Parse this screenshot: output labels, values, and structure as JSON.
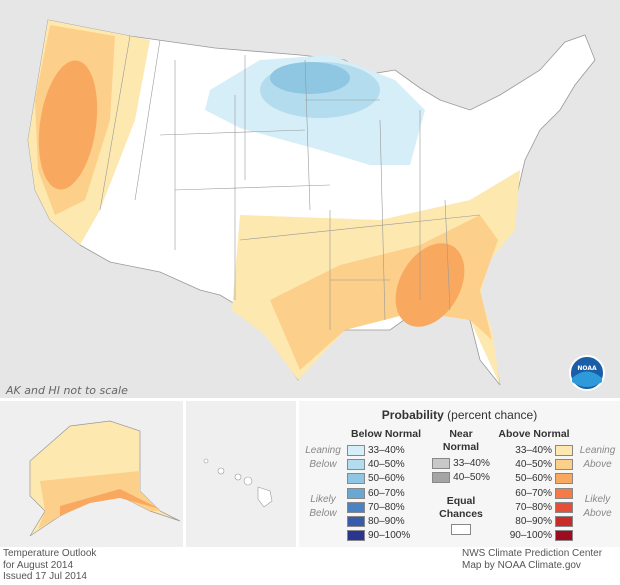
{
  "map": {
    "scale_note": "AK and HI not to scale",
    "logo": "NOAA"
  },
  "legend": {
    "title_bold": "Probability",
    "title_rest": " (percent chance)",
    "below": {
      "heading": "Below Normal",
      "leaning": "Leaning Below",
      "likely": "Likely Below",
      "items": [
        {
          "label": "33–40%",
          "color": "#d6eef7"
        },
        {
          "label": "40–50%",
          "color": "#b3dcee"
        },
        {
          "label": "50–60%",
          "color": "#8fc6e2"
        },
        {
          "label": "60–70%",
          "color": "#6aa7d2"
        },
        {
          "label": "70–80%",
          "color": "#4d82c2"
        },
        {
          "label": "80–90%",
          "color": "#3a5aaa"
        },
        {
          "label": "90–100%",
          "color": "#2b3590"
        }
      ]
    },
    "near": {
      "heading": "Near Normal",
      "items": [
        {
          "label": "33–40%",
          "color": "#c8c8c8"
        },
        {
          "label": "40–50%",
          "color": "#a5a5a5"
        }
      ],
      "equal": "Equal Chances"
    },
    "above": {
      "heading": "Above Normal",
      "leaning": "Leaning Above",
      "likely": "Likely Above",
      "items": [
        {
          "label": "33–40%",
          "color": "#fde8b0"
        },
        {
          "label": "40–50%",
          "color": "#fcd08a"
        },
        {
          "label": "50–60%",
          "color": "#f9a860"
        },
        {
          "label": "60–70%",
          "color": "#f47b48"
        },
        {
          "label": "70–80%",
          "color": "#e3503a"
        },
        {
          "label": "80–90%",
          "color": "#c92a2a"
        },
        {
          "label": "90–100%",
          "color": "#a00b24"
        }
      ]
    }
  },
  "footer": {
    "left": [
      "Temperature Outlook",
      "for August 2014",
      "Issued 17 Jul 2014"
    ],
    "right": [
      "NWS Climate Prediction Center",
      "Map by NOAA Climate.gov"
    ]
  }
}
